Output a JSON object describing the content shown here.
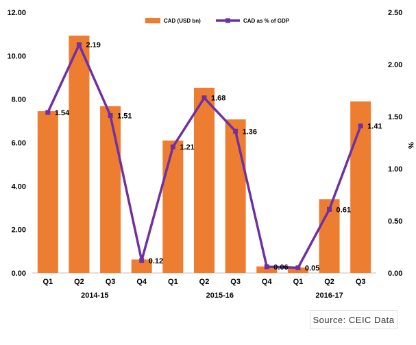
{
  "chart_data": {
    "type": "bar+line",
    "categories": [
      "Q1",
      "Q2",
      "Q3",
      "Q4",
      "Q1",
      "Q2",
      "Q3",
      "Q4",
      "Q1",
      "Q2",
      "Q3"
    ],
    "groups": [
      {
        "label": "2014-15",
        "start": 0,
        "end": 3
      },
      {
        "label": "2015-16",
        "start": 4,
        "end": 7
      },
      {
        "label": "2016-17",
        "start": 8,
        "end": 10
      }
    ],
    "series": [
      {
        "name": "CAD (USD bn)",
        "type": "bar",
        "axis": "left",
        "values": [
          7.45,
          10.93,
          7.68,
          0.62,
          6.1,
          8.53,
          7.07,
          0.3,
          0.25,
          3.4,
          7.9
        ]
      },
      {
        "name": "CAD as % of GDP",
        "type": "line",
        "axis": "right",
        "values": [
          1.54,
          2.19,
          1.51,
          0.12,
          1.21,
          1.68,
          1.36,
          0.06,
          0.05,
          0.61,
          1.41
        ],
        "labels": [
          "1.54",
          "2.19",
          "1.51",
          "0.12",
          "1.21",
          "1.68",
          "1.36",
          "0.06",
          "0.05",
          "0.61",
          "1.41"
        ]
      }
    ],
    "left_axis": {
      "ylim": [
        0,
        12
      ],
      "ticks": [
        "0.00",
        "2.00",
        "4.00",
        "6.00",
        "8.00",
        "10.00",
        "12.00"
      ]
    },
    "right_axis": {
      "ylim": [
        0,
        2.5
      ],
      "ticks": [
        "0.00",
        "0.50",
        "1.00",
        "1.50",
        "2.00",
        "2.50"
      ],
      "label": "%"
    },
    "legend_position": "top-center",
    "grid": false
  },
  "source": "Source: CEIC Data",
  "colors": {
    "bar": "#ED7D31",
    "line": "#7030A0",
    "text": "#000000",
    "axis": "#bfbfbf"
  }
}
